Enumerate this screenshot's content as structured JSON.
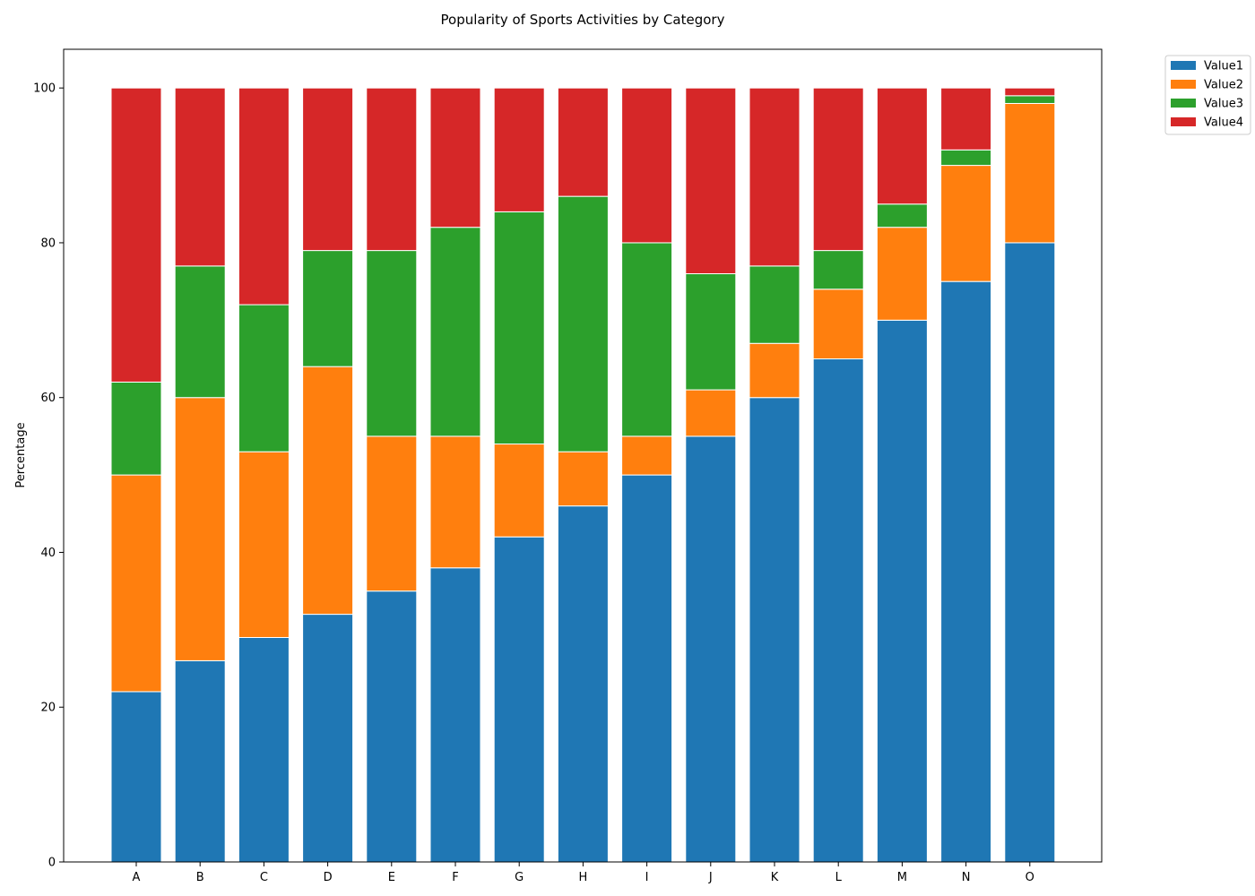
{
  "chart_data": {
    "type": "bar",
    "stacked": true,
    "title": "Popularity of Sports Activities by Category",
    "xlabel": "",
    "ylabel": "Percentage",
    "ylim": [
      0,
      105
    ],
    "yticks": [
      0,
      20,
      40,
      60,
      80,
      100
    ],
    "grid": false,
    "legend_position": "outside-top-right",
    "categories": [
      "A",
      "B",
      "C",
      "D",
      "E",
      "F",
      "G",
      "H",
      "I",
      "J",
      "K",
      "L",
      "M",
      "N",
      "O"
    ],
    "series": [
      {
        "name": "Value1",
        "color": "#1f77b4",
        "values": [
          22,
          26,
          29,
          32,
          35,
          38,
          42,
          46,
          50,
          55,
          60,
          65,
          70,
          75,
          80
        ]
      },
      {
        "name": "Value2",
        "color": "#ff7f0e",
        "values": [
          28,
          34,
          24,
          32,
          20,
          17,
          12,
          7,
          5,
          6,
          7,
          9,
          12,
          15,
          18
        ]
      },
      {
        "name": "Value3",
        "color": "#2ca02c",
        "values": [
          12,
          17,
          19,
          15,
          24,
          27,
          30,
          33,
          25,
          15,
          10,
          5,
          3,
          2,
          1
        ]
      },
      {
        "name": "Value4",
        "color": "#d62728",
        "values": [
          38,
          23,
          28,
          21,
          21,
          18,
          16,
          14,
          20,
          24,
          23,
          21,
          15,
          8,
          1
        ]
      }
    ]
  }
}
